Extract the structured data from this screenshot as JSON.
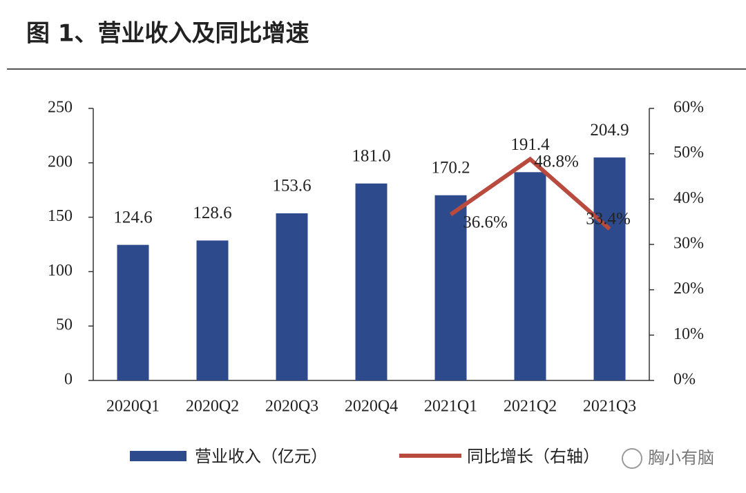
{
  "chart_data": {
    "type": "bar",
    "title": "图 1、营业收入及同比增速",
    "categories": [
      "2020Q1",
      "2020Q2",
      "2020Q3",
      "2020Q4",
      "2021Q1",
      "2021Q2",
      "2021Q3"
    ],
    "series": [
      {
        "name": "营业收入（亿元）",
        "type": "bar",
        "color": "#2d4b8c",
        "values": [
          124.6,
          128.6,
          153.6,
          181.0,
          170.2,
          191.4,
          204.9
        ],
        "value_labels": [
          "124.6",
          "128.6",
          "153.6",
          "181.0",
          "170.2",
          "191.4",
          "204.9"
        ]
      },
      {
        "name": "同比增长（右轴）",
        "type": "line",
        "axis": "y2",
        "color": "#b84a3e",
        "values": [
          null,
          null,
          null,
          null,
          36.6,
          48.8,
          33.4
        ],
        "value_labels": [
          null,
          null,
          null,
          null,
          "36.6%",
          "48.8%",
          "33.4%"
        ]
      }
    ],
    "ylim": [
      0,
      250
    ],
    "yticks": [
      0,
      50,
      100,
      150,
      200,
      250
    ],
    "y2lim": [
      0,
      60
    ],
    "y2ticks": [
      {
        "value": 0,
        "label": "0%"
      },
      {
        "value": 10,
        "label": "10%"
      },
      {
        "value": 20,
        "label": "20%"
      },
      {
        "value": 30,
        "label": "30%"
      },
      {
        "value": 40,
        "label": "40%"
      },
      {
        "value": 50,
        "label": "50%"
      },
      {
        "value": 60,
        "label": "60%"
      }
    ],
    "legend": "bottom",
    "watermark": "胸小有脑"
  }
}
